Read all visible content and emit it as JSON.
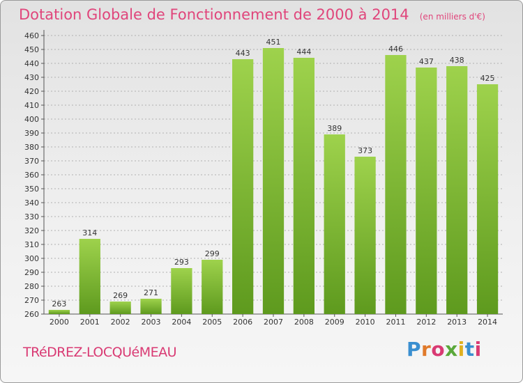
{
  "title": "Dotation Globale de Fonctionnement de 2000 à 2014",
  "subtitle": "(en milliers d'€)",
  "commune": "TRéDREZ-LOCQUéMEAU",
  "logo": {
    "text": "Proxiti",
    "colors": [
      "#3a8fd0",
      "#e07a2b",
      "#d93a73",
      "#5aa83a",
      "#e0b020",
      "#3a8fd0",
      "#d93a73"
    ]
  },
  "colors": {
    "title": "#e0457b",
    "bar_top": "#9ed24c",
    "bar_bottom": "#5e9a1e",
    "grid": "#b0b0b0"
  },
  "chart_data": {
    "type": "bar",
    "categories": [
      "2000",
      "2001",
      "2002",
      "2003",
      "2004",
      "2005",
      "2006",
      "2007",
      "2008",
      "2009",
      "2010",
      "2011",
      "2012",
      "2013",
      "2014"
    ],
    "values": [
      263,
      314,
      269,
      271,
      293,
      299,
      443,
      451,
      444,
      389,
      373,
      446,
      437,
      438,
      425
    ],
    "ylim": [
      260,
      460
    ],
    "ytick_step": 10,
    "grid": true,
    "data_labels": true,
    "xlabel": "",
    "ylabel": ""
  }
}
